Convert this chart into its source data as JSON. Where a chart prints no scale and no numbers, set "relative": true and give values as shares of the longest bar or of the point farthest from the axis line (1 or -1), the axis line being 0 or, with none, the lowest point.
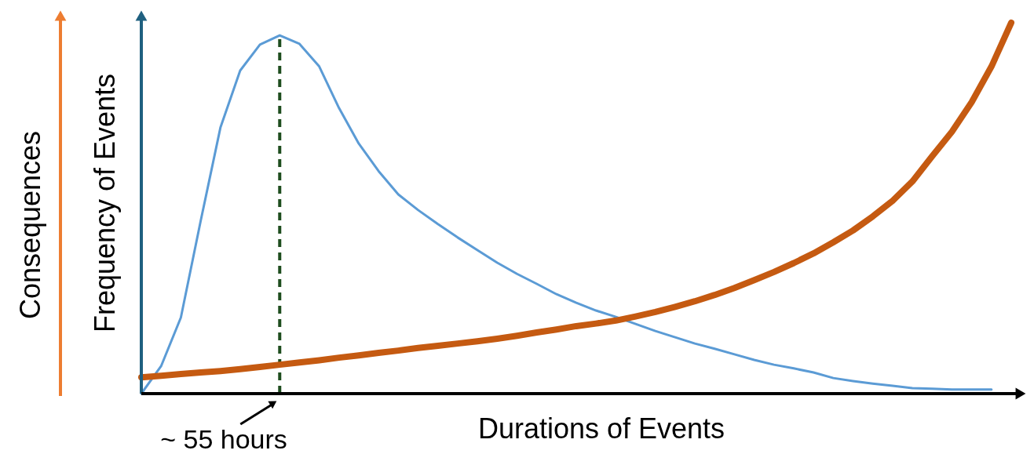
{
  "chart_data": {
    "type": "line",
    "relative": true,
    "xlabel": "Durations of Events",
    "ylabel": "Frequency of Events",
    "y2label": "Consequences",
    "legend": false,
    "marker": "none",
    "line_style": "solid",
    "categories": [
      null,
      null,
      null,
      null,
      null,
      null,
      null,
      null,
      null,
      null,
      null,
      null,
      null,
      null,
      null,
      null,
      null,
      null,
      null,
      null,
      null,
      null,
      null,
      null,
      null,
      null,
      null,
      null,
      null,
      null,
      null,
      null,
      null,
      null,
      null,
      null,
      null,
      null,
      null,
      null,
      null,
      null,
      null,
      null,
      null
    ],
    "series": [
      {
        "color": "#5b9bd5",
        "values": [
          0.0,
          0.074,
          0.205,
          0.465,
          0.717,
          0.871,
          0.941,
          0.966,
          0.943,
          0.882,
          0.77,
          0.674,
          0.6,
          0.537,
          0.495,
          0.457,
          0.421,
          0.387,
          0.353,
          0.323,
          0.296,
          0.268,
          0.245,
          0.224,
          0.207,
          0.188,
          0.169,
          0.152,
          0.135,
          0.121,
          0.106,
          0.091,
          0.078,
          0.068,
          0.057,
          0.042,
          0.034,
          0.027,
          0.021,
          0.015,
          0.013,
          0.011,
          0.011,
          0.011,
          null
        ]
      },
      {
        "color": "#c55a11",
        "values": [
          0.044,
          0.048,
          0.053,
          0.057,
          0.061,
          0.066,
          0.072,
          0.078,
          0.084,
          0.09,
          0.097,
          0.103,
          0.11,
          0.116,
          0.123,
          0.129,
          0.135,
          0.141,
          0.148,
          0.156,
          0.165,
          0.173,
          0.182,
          0.189,
          0.197,
          0.208,
          0.22,
          0.234,
          0.249,
          0.266,
          0.285,
          0.306,
          0.328,
          0.352,
          0.378,
          0.408,
          0.44,
          0.478,
          0.52,
          0.572,
          0.64,
          0.706,
          0.786,
          0.882,
          1.0
        ]
      }
    ],
    "annotations": [
      "~ 55 hours"
    ]
  }
}
